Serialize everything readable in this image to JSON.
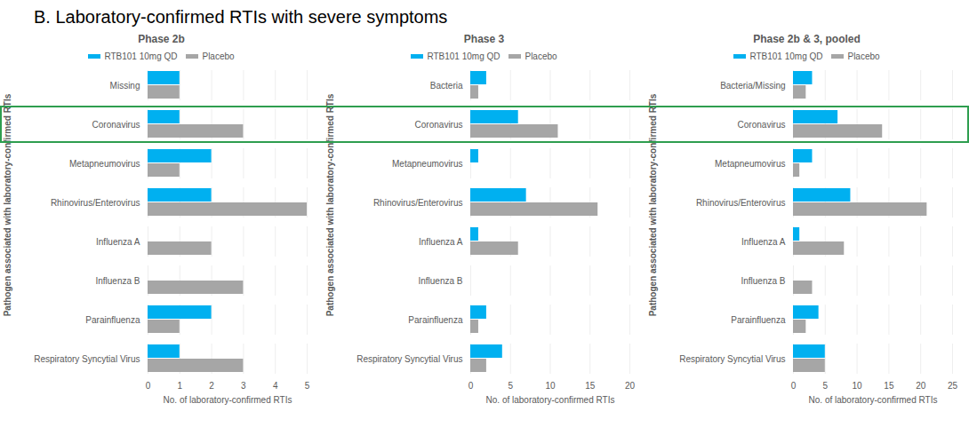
{
  "title": "B.   Laboratory-confirmed RTIs with severe symptoms",
  "chart_data": [
    {
      "type": "bar",
      "orientation": "horizontal",
      "title": "Phase 2b",
      "categories": [
        "Missing",
        "Coronavirus",
        "Metapneumovirus",
        "Rhinovirus/Enterovirus",
        "Influenza A",
        "Influenza B",
        "Parainfluenza",
        "Respiratory Syncytial Virus"
      ],
      "series": [
        {
          "name": "RTB101 10mg QD",
          "color": "#00B0F0",
          "values": [
            1,
            1,
            2,
            2,
            0,
            0,
            2,
            1
          ]
        },
        {
          "name": "Placebo",
          "color": "#A6A6A6",
          "values": [
            1,
            3,
            1,
            5,
            2,
            3,
            1,
            3
          ]
        }
      ],
      "xlim": [
        0,
        5
      ],
      "xticks": [
        0,
        1,
        2,
        3,
        4,
        5
      ],
      "x_label": "No. of laboratory-confirmed RTIs",
      "y_label": "Pathogen associated with laboratory-confirmed RTIs",
      "grid": true,
      "legend": "top"
    },
    {
      "type": "bar",
      "orientation": "horizontal",
      "title": "Phase 3",
      "categories": [
        "Bacteria",
        "Coronavirus",
        "Metapneumovirus",
        "Rhinovirus/Enterovirus",
        "Influenza A",
        "Influenza B",
        "Parainfluenza",
        "Respiratory Syncytial Virus"
      ],
      "series": [
        {
          "name": "RTB101 10mg QD",
          "color": "#00B0F0",
          "values": [
            2,
            6,
            1,
            7,
            1,
            0,
            2,
            4
          ]
        },
        {
          "name": "Placebo",
          "color": "#A6A6A6",
          "values": [
            1,
            11,
            0,
            16,
            6,
            0,
            1,
            2
          ]
        }
      ],
      "xlim": [
        0,
        20
      ],
      "xticks": [
        0,
        5,
        10,
        15,
        20
      ],
      "x_label": "No. of laboratory-confirmed RTIs",
      "y_label": "Pathogen associated with laboratory-confirmed RTIs",
      "grid": true,
      "legend": "top"
    },
    {
      "type": "bar",
      "orientation": "horizontal",
      "title": "Phase 2b & 3, pooled",
      "categories": [
        "Bacteria/Missing",
        "Coronavirus",
        "Metapneumovirus",
        "Rhinovirus/Enterovirus",
        "Influenza A",
        "Influenza B",
        "Parainfluenza",
        "Respiratory Syncytial Virus"
      ],
      "series": [
        {
          "name": "RTB101 10mg QD",
          "color": "#00B0F0",
          "values": [
            3,
            7,
            3,
            9,
            1,
            0,
            4,
            5
          ]
        },
        {
          "name": "Placebo",
          "color": "#A6A6A6",
          "values": [
            2,
            14,
            1,
            21,
            8,
            3,
            2,
            5
          ]
        }
      ],
      "xlim": [
        0,
        25
      ],
      "xticks": [
        0,
        5,
        10,
        15,
        20,
        25
      ],
      "x_label": "No. of laboratory-confirmed RTIs",
      "y_label": "Pathogen associated with laboratory-confirmed RTIs",
      "grid": true,
      "legend": "top"
    }
  ]
}
